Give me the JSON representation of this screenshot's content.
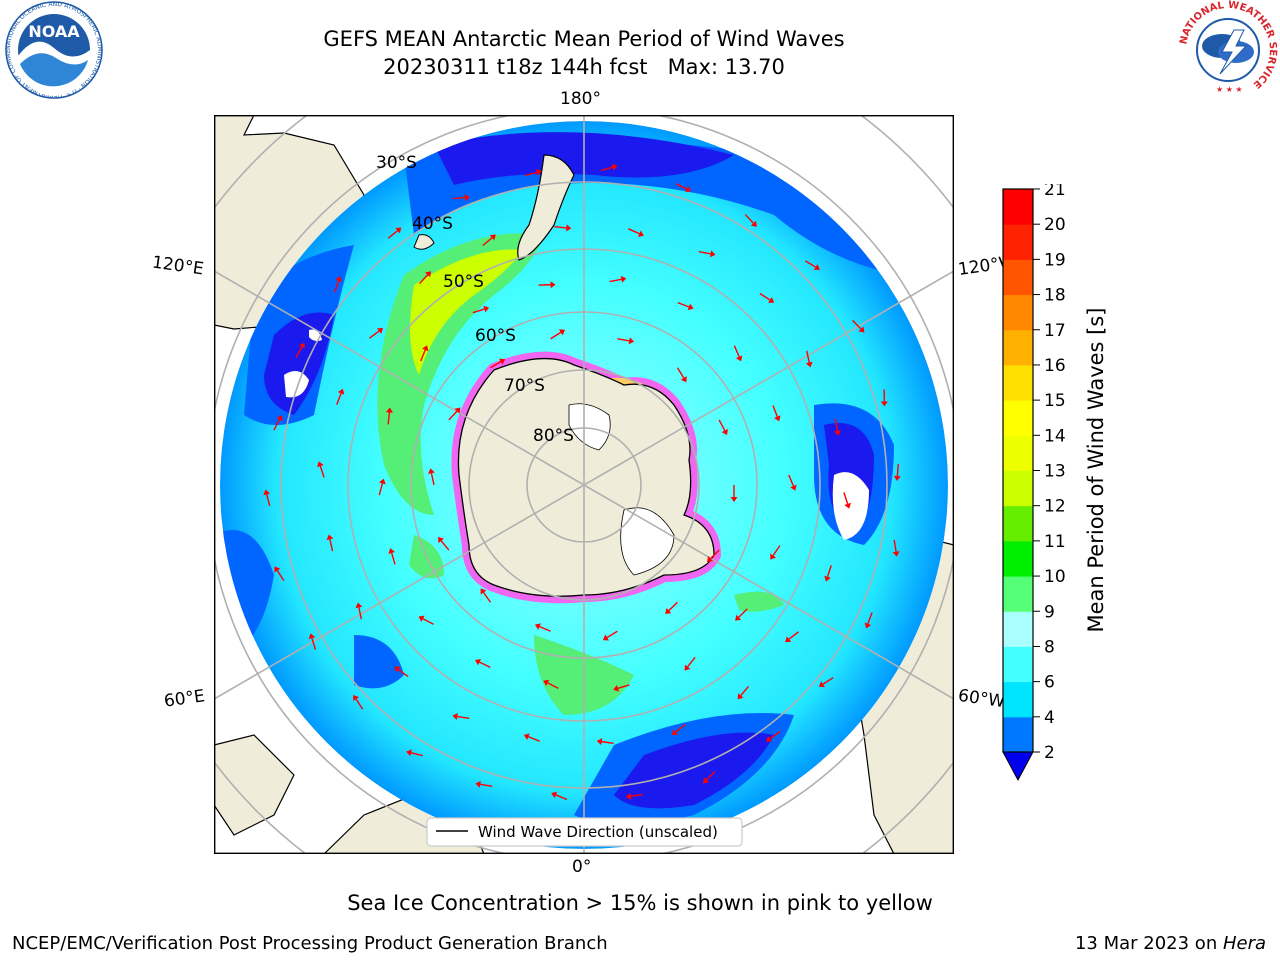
{
  "header": {
    "title_line1": "GEFS MEAN Antarctic Mean Period of Wind Waves",
    "title_line2": "20230311 t18z 144h fcst   Max: 13.70"
  },
  "logos": {
    "left": {
      "text": "NOAA",
      "ring_text": "NATIONAL OCEANIC AND ATMOSPHERIC ADMINISTRATION · U.S. DEPARTMENT OF COMMERCE",
      "color": "#1e5aa8"
    },
    "right": {
      "ring_text": "NATIONAL WEATHER SERVICE",
      "color": "#d8262e"
    }
  },
  "map": {
    "projection": "south-polar-stereographic",
    "longitude_labels": {
      "top": "180°",
      "bottom": "0°",
      "left_upper": "120°E",
      "left_lower": "60°E",
      "right_upper": "120°W",
      "right_lower": "60°W"
    },
    "latitude_labels": [
      "30°S",
      "40°S",
      "50°S",
      "60°S",
      "70°S",
      "80°S"
    ],
    "legend": "Wind Wave Direction (unscaled)",
    "colors": {
      "land": "#efedd9",
      "ocean_low": "#33ffff",
      "ocean_mid": "#99ffff",
      "swell_blue": "#0066ff",
      "deep_blue": "#1a1aee",
      "green": "#55ee77",
      "yellow_green": "#ccff00",
      "ice": "#ff55ee",
      "arrow": "#ff0000",
      "grid": "#b0b0b0"
    }
  },
  "colorbar": {
    "label": "Mean Period of Wind Waves [s]",
    "ticks": [
      "2",
      "4",
      "6",
      "8",
      "9",
      "10",
      "11",
      "12",
      "13",
      "14",
      "15",
      "16",
      "17",
      "18",
      "19",
      "20",
      "21"
    ],
    "colors": [
      "#0077ff",
      "#00e5ff",
      "#44ffff",
      "#aaffff",
      "#55ff77",
      "#00ee00",
      "#66ee00",
      "#ccff00",
      "#eeff00",
      "#ffff00",
      "#ffe000",
      "#ffb000",
      "#ff8800",
      "#ff5500",
      "#ff2200",
      "#ff0000"
    ],
    "under_color": "#0000ee"
  },
  "footer": {
    "ice_note": "Sea Ice Concentration > 15% is shown in pink to yellow",
    "credit": "NCEP/EMC/Verification Post Processing Product Generation Branch",
    "date": "13 Mar 2023 on ",
    "host": "Hera"
  }
}
